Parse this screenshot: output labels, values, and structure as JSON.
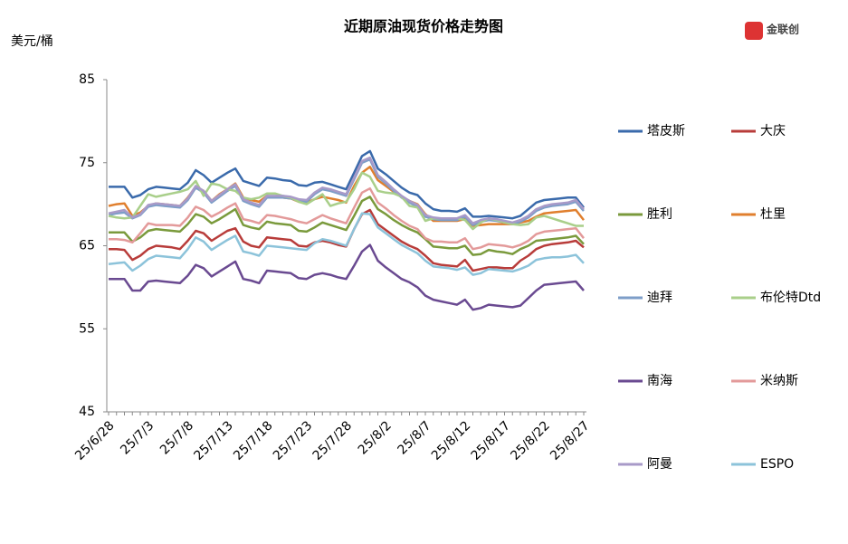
{
  "chart_data": {
    "type": "line",
    "title": "近期原油现货价格走势图",
    "y_label": "美元/桶",
    "logo": "金联创",
    "categories": [
      "25/6/28",
      null,
      null,
      null,
      null,
      "25/7/3",
      null,
      null,
      null,
      null,
      "25/7/8",
      null,
      null,
      null,
      null,
      "25/7/13",
      null,
      null,
      null,
      null,
      "25/7/18",
      null,
      null,
      null,
      null,
      "25/7/23",
      null,
      null,
      null,
      null,
      "25/7/28",
      null,
      null,
      null,
      null,
      "25/8/2",
      null,
      null,
      null,
      null,
      "25/8/7",
      null,
      null,
      null,
      null,
      "25/8/12",
      null,
      null,
      null,
      null,
      "25/8/17",
      null,
      null,
      null,
      null,
      "25/8/22",
      null,
      null,
      null,
      null,
      "25/8/27"
    ],
    "ylim": [
      45,
      85
    ],
    "yticks": [
      45,
      55,
      65,
      75,
      85
    ],
    "legend": "right",
    "series": [
      {
        "name": "塔皮斯",
        "color": "#3a6aab",
        "values": [
          72.1,
          72.1,
          72.1,
          70.8,
          71.1,
          71.8,
          72.1,
          72.0,
          71.9,
          71.8,
          72.6,
          74.1,
          73.5,
          72.6,
          73.2,
          73.8,
          74.3,
          72.8,
          72.5,
          72.2,
          73.2,
          73.1,
          72.9,
          72.8,
          72.3,
          72.2,
          72.6,
          72.7,
          72.4,
          72.1,
          71.8,
          73.8,
          75.8,
          76.4,
          74.3,
          73.6,
          72.8,
          72.0,
          71.4,
          71.1,
          70.1,
          69.4,
          69.2,
          69.2,
          69.1,
          69.5,
          68.5,
          68.5,
          68.6,
          68.5,
          68.4,
          68.3,
          68.6,
          69.4,
          70.2,
          70.5,
          70.6,
          70.7,
          70.8,
          70.8,
          69.6
        ]
      },
      {
        "name": "大庆",
        "color": "#b83c3a",
        "values": [
          64.6,
          64.6,
          64.5,
          63.3,
          63.8,
          64.6,
          65.0,
          64.9,
          64.8,
          64.6,
          65.6,
          66.8,
          66.5,
          65.6,
          66.2,
          66.8,
          67.1,
          65.5,
          65.0,
          64.8,
          66.0,
          65.9,
          65.8,
          65.7,
          65.0,
          64.9,
          65.4,
          65.6,
          65.4,
          65.1,
          64.9,
          67.0,
          68.8,
          69.3,
          67.6,
          66.9,
          66.2,
          65.5,
          65.0,
          64.6,
          63.8,
          62.9,
          62.7,
          62.6,
          62.5,
          63.3,
          62.0,
          62.2,
          62.4,
          62.4,
          62.3,
          62.3,
          63.2,
          63.8,
          64.6,
          65.0,
          65.2,
          65.3,
          65.4,
          65.6,
          64.8
        ]
      },
      {
        "name": "胜利",
        "color": "#7a9a3c",
        "values": [
          66.6,
          66.6,
          66.6,
          65.5,
          66.0,
          66.8,
          67.0,
          66.9,
          66.8,
          66.7,
          67.6,
          68.8,
          68.5,
          67.7,
          68.2,
          68.8,
          69.4,
          67.5,
          67.2,
          67.0,
          67.9,
          67.7,
          67.6,
          67.5,
          66.8,
          66.7,
          67.2,
          67.8,
          67.5,
          67.2,
          66.9,
          68.6,
          70.4,
          70.9,
          69.4,
          68.8,
          68.1,
          67.5,
          67.0,
          66.6,
          65.8,
          64.9,
          64.8,
          64.7,
          64.7,
          65.0,
          63.9,
          64.0,
          64.5,
          64.3,
          64.2,
          64.0,
          64.6,
          65.0,
          65.6,
          65.7,
          65.8,
          65.9,
          66.0,
          66.2,
          65.2
        ]
      },
      {
        "name": "杜里",
        "color": "#e07f2e",
        "values": [
          69.8,
          70.0,
          70.1,
          68.6,
          69.0,
          69.8,
          70.1,
          70.0,
          69.9,
          69.8,
          70.8,
          72.1,
          71.6,
          70.4,
          71.2,
          71.8,
          72.5,
          70.8,
          70.5,
          70.3,
          71.0,
          70.9,
          70.8,
          70.7,
          70.3,
          70.2,
          70.6,
          70.9,
          70.7,
          70.5,
          70.2,
          72.2,
          73.8,
          74.5,
          72.9,
          72.2,
          71.5,
          70.9,
          70.4,
          70.0,
          68.8,
          68.0,
          68.0,
          68.0,
          68.0,
          68.2,
          67.4,
          67.5,
          67.6,
          67.6,
          67.6,
          67.6,
          67.8,
          68.0,
          68.5,
          68.9,
          69.0,
          69.1,
          69.2,
          69.3,
          68.1
        ]
      },
      {
        "name": "迪拜",
        "color": "#7d9ec8",
        "values": [
          68.7,
          68.9,
          69.0,
          68.3,
          68.7,
          69.7,
          69.9,
          69.8,
          69.7,
          69.6,
          70.5,
          72.0,
          71.4,
          70.2,
          70.9,
          71.6,
          72.2,
          70.4,
          70.0,
          69.7,
          70.8,
          70.8,
          70.8,
          70.7,
          70.4,
          70.3,
          71.2,
          71.8,
          71.6,
          71.3,
          71.0,
          73.0,
          75.0,
          75.4,
          73.3,
          72.5,
          71.6,
          70.8,
          70.2,
          69.7,
          68.5,
          68.2,
          68.1,
          68.1,
          68.1,
          68.5,
          67.5,
          67.9,
          68.1,
          68.0,
          67.8,
          67.6,
          67.9,
          68.4,
          69.2,
          69.6,
          69.8,
          69.9,
          70.0,
          70.3,
          69.2
        ]
      },
      {
        "name": "布伦特Dtd",
        "color": "#a9cf8a",
        "values": [
          68.6,
          68.4,
          68.3,
          68.4,
          69.8,
          71.2,
          70.9,
          71.1,
          71.3,
          71.5,
          71.8,
          72.8,
          71.0,
          72.5,
          72.3,
          71.8,
          71.6,
          70.8,
          70.6,
          70.8,
          71.3,
          71.3,
          71.0,
          70.8,
          70.3,
          70.0,
          70.6,
          71.2,
          69.8,
          70.1,
          70.3,
          71.8,
          73.8,
          73.3,
          71.6,
          71.4,
          71.3,
          70.9,
          69.8,
          69.6,
          68.0,
          68.3,
          68.3,
          68.3,
          68.3,
          68.1,
          67.0,
          67.8,
          68.3,
          68.1,
          67.8,
          67.6,
          67.5,
          67.6,
          68.4,
          68.6,
          68.3,
          68.0,
          67.7,
          67.4,
          67.4
        ]
      },
      {
        "name": "南海",
        "color": "#6a4a91",
        "values": [
          61.0,
          61.0,
          61.0,
          59.6,
          59.6,
          60.7,
          60.8,
          60.7,
          60.6,
          60.5,
          61.4,
          62.7,
          62.3,
          61.3,
          61.9,
          62.5,
          63.1,
          61.0,
          60.8,
          60.5,
          62.0,
          61.9,
          61.8,
          61.7,
          61.1,
          61.0,
          61.5,
          61.7,
          61.5,
          61.2,
          61.0,
          62.6,
          64.3,
          65.1,
          63.2,
          62.4,
          61.7,
          61.0,
          60.6,
          60.0,
          59.0,
          58.5,
          58.3,
          58.1,
          57.9,
          58.5,
          57.3,
          57.5,
          57.9,
          57.8,
          57.7,
          57.6,
          57.8,
          58.7,
          59.6,
          60.3,
          60.4,
          60.5,
          60.6,
          60.7,
          59.6
        ]
      },
      {
        "name": "米纳斯",
        "color": "#e39a9a",
        "values": [
          65.8,
          65.8,
          65.7,
          65.4,
          66.5,
          67.7,
          67.5,
          67.5,
          67.5,
          67.4,
          68.4,
          69.7,
          69.3,
          68.5,
          69.0,
          69.6,
          70.1,
          68.2,
          68.0,
          67.7,
          68.7,
          68.6,
          68.4,
          68.2,
          67.9,
          67.7,
          68.2,
          68.7,
          68.3,
          68.0,
          67.7,
          69.6,
          71.4,
          71.9,
          70.2,
          69.5,
          68.7,
          68.0,
          67.4,
          67.0,
          65.9,
          65.5,
          65.5,
          65.4,
          65.4,
          65.9,
          64.6,
          64.8,
          65.2,
          65.1,
          65.0,
          64.8,
          65.1,
          65.6,
          66.4,
          66.7,
          66.8,
          66.9,
          67.0,
          67.1,
          65.9
        ]
      },
      {
        "name": "阿曼",
        "color": "#a89ac8",
        "values": [
          68.9,
          69.1,
          69.3,
          68.4,
          68.8,
          69.9,
          70.1,
          70.0,
          69.9,
          69.8,
          70.7,
          72.2,
          71.6,
          70.4,
          71.1,
          71.8,
          72.4,
          70.6,
          70.2,
          69.9,
          71.0,
          71.0,
          71.0,
          70.9,
          70.6,
          70.5,
          71.4,
          72.0,
          71.8,
          71.5,
          71.2,
          73.2,
          75.2,
          75.6,
          73.5,
          72.7,
          71.8,
          71.0,
          70.4,
          69.9,
          68.7,
          68.4,
          68.3,
          68.3,
          68.3,
          68.7,
          67.7,
          68.1,
          68.3,
          68.2,
          68.0,
          67.8,
          68.1,
          68.6,
          69.4,
          69.8,
          70.0,
          70.1,
          70.2,
          70.5,
          69.4
        ]
      },
      {
        "name": "ESPO",
        "color": "#8cc3da",
        "values": [
          62.8,
          62.9,
          63.0,
          62.0,
          62.6,
          63.4,
          63.8,
          63.7,
          63.6,
          63.5,
          64.6,
          66.0,
          65.5,
          64.5,
          65.1,
          65.7,
          66.2,
          64.3,
          64.1,
          63.8,
          65.0,
          64.9,
          64.8,
          64.7,
          64.6,
          64.5,
          65.3,
          65.8,
          65.6,
          65.3,
          65.0,
          67.0,
          68.9,
          68.8,
          67.2,
          66.5,
          65.8,
          65.1,
          64.6,
          64.1,
          63.2,
          62.5,
          62.4,
          62.3,
          62.1,
          62.4,
          61.5,
          61.7,
          62.2,
          62.1,
          62.0,
          61.9,
          62.2,
          62.6,
          63.3,
          63.5,
          63.6,
          63.6,
          63.7,
          63.9,
          62.9
        ]
      }
    ]
  }
}
